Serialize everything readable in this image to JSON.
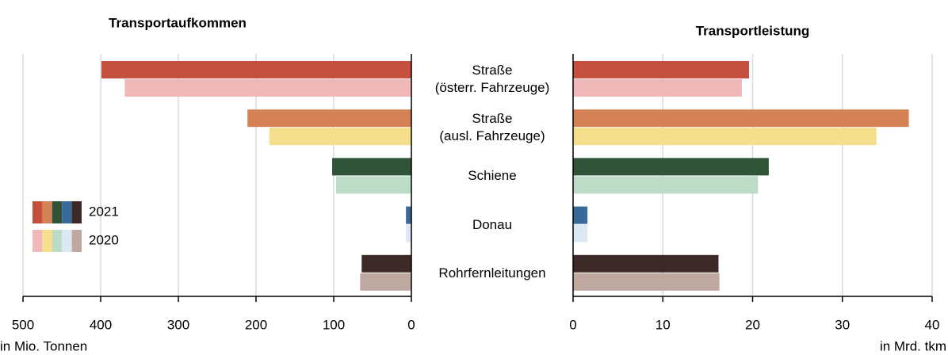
{
  "chart_data": {
    "type": "bar",
    "orientation": "horizontal",
    "grid": true,
    "categories": [
      "Straße\n(österr. Fahrzeuge)",
      "Straße\n(ausl. Fahrzeuge)",
      "Schiene",
      "Donau",
      "Rohrfernleitungen"
    ],
    "series": [
      {
        "name": "2021",
        "colors": [
          "#c55040",
          "#d48255",
          "#2f5438",
          "#3a6a9a",
          "#3d2a28"
        ]
      },
      {
        "name": "2020",
        "colors": [
          "#f0b8b8",
          "#f5df8c",
          "#bcdcc8",
          "#dde8f5",
          "#bfa8a0"
        ]
      }
    ],
    "panels": [
      {
        "title": "Transportaufkommen",
        "x_label": "in Mio. Tonnen",
        "xlim": [
          500,
          0
        ],
        "xticks": [
          500,
          400,
          300,
          200,
          100,
          0
        ],
        "values": [
          [
            399,
            211,
            102,
            7,
            64
          ],
          [
            369,
            183,
            97,
            7,
            66
          ]
        ]
      },
      {
        "title": "Transportleistung",
        "x_label": "in Mrd. tkm",
        "xlim": [
          0,
          40
        ],
        "xticks": [
          0,
          10,
          20,
          30,
          40
        ],
        "values": [
          [
            19.6,
            37.4,
            21.8,
            1.6,
            16.2
          ],
          [
            18.8,
            33.8,
            20.6,
            1.6,
            16.3
          ]
        ]
      }
    ]
  }
}
